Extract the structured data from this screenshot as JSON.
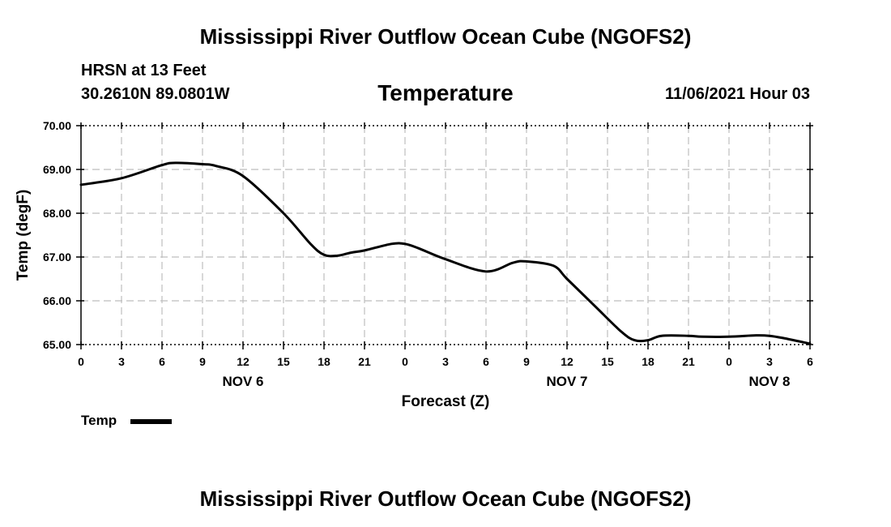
{
  "header": {
    "title": "Mississippi River Outflow Ocean Cube (NGOFS2)",
    "station": "HRSN at 13 Feet",
    "coordinates": "30.2610N  89.0801W",
    "datetime": "11/06/2021 Hour 03"
  },
  "footer": {
    "title": "Mississippi River Outflow Ocean Cube (NGOFS2)"
  },
  "chart_data": {
    "type": "line",
    "title": "Temperature",
    "xlabel": "Forecast (Z)",
    "ylabel": "Temp (degF)",
    "ylim": [
      65.0,
      70.0
    ],
    "xlim": [
      0,
      54
    ],
    "grid": true,
    "y_ticks": [
      65,
      66,
      67,
      68,
      69,
      70
    ],
    "y_tick_labels": [
      "65.00",
      "66.00",
      "67.00",
      "68.00",
      "69.00",
      "70.00"
    ],
    "x_ticks": [
      0,
      3,
      6,
      9,
      12,
      15,
      18,
      21,
      24,
      27,
      30,
      33,
      36,
      39,
      42,
      45,
      48,
      51,
      54
    ],
    "x_tick_labels": [
      "0",
      "3",
      "6",
      "9",
      "12",
      "15",
      "18",
      "21",
      "0",
      "3",
      "6",
      "9",
      "12",
      "15",
      "18",
      "21",
      "0",
      "3",
      "6"
    ],
    "day_labels": [
      {
        "label": "NOV 6",
        "x": 12
      },
      {
        "label": "NOV 7",
        "x": 36
      },
      {
        "label": "NOV 8",
        "x": 51
      }
    ],
    "legend": "bottom-left",
    "series": [
      {
        "name": "Temp",
        "x": [
          0,
          3,
          6,
          7,
          9,
          10,
          12,
          15,
          17,
          18,
          19,
          20,
          21,
          23,
          24,
          25,
          27,
          30,
          32,
          33,
          35,
          36,
          38,
          40,
          41,
          42,
          43,
          45,
          46,
          48,
          50,
          51,
          52,
          54
        ],
        "values": [
          68.65,
          68.8,
          69.1,
          69.15,
          69.12,
          69.08,
          68.85,
          68.0,
          67.3,
          67.05,
          67.03,
          67.1,
          67.15,
          67.3,
          67.3,
          67.2,
          66.95,
          66.67,
          66.87,
          66.9,
          66.8,
          66.5,
          65.9,
          65.3,
          65.1,
          65.1,
          65.2,
          65.2,
          65.18,
          65.18,
          65.21,
          65.2,
          65.15,
          65.02
        ]
      }
    ]
  }
}
